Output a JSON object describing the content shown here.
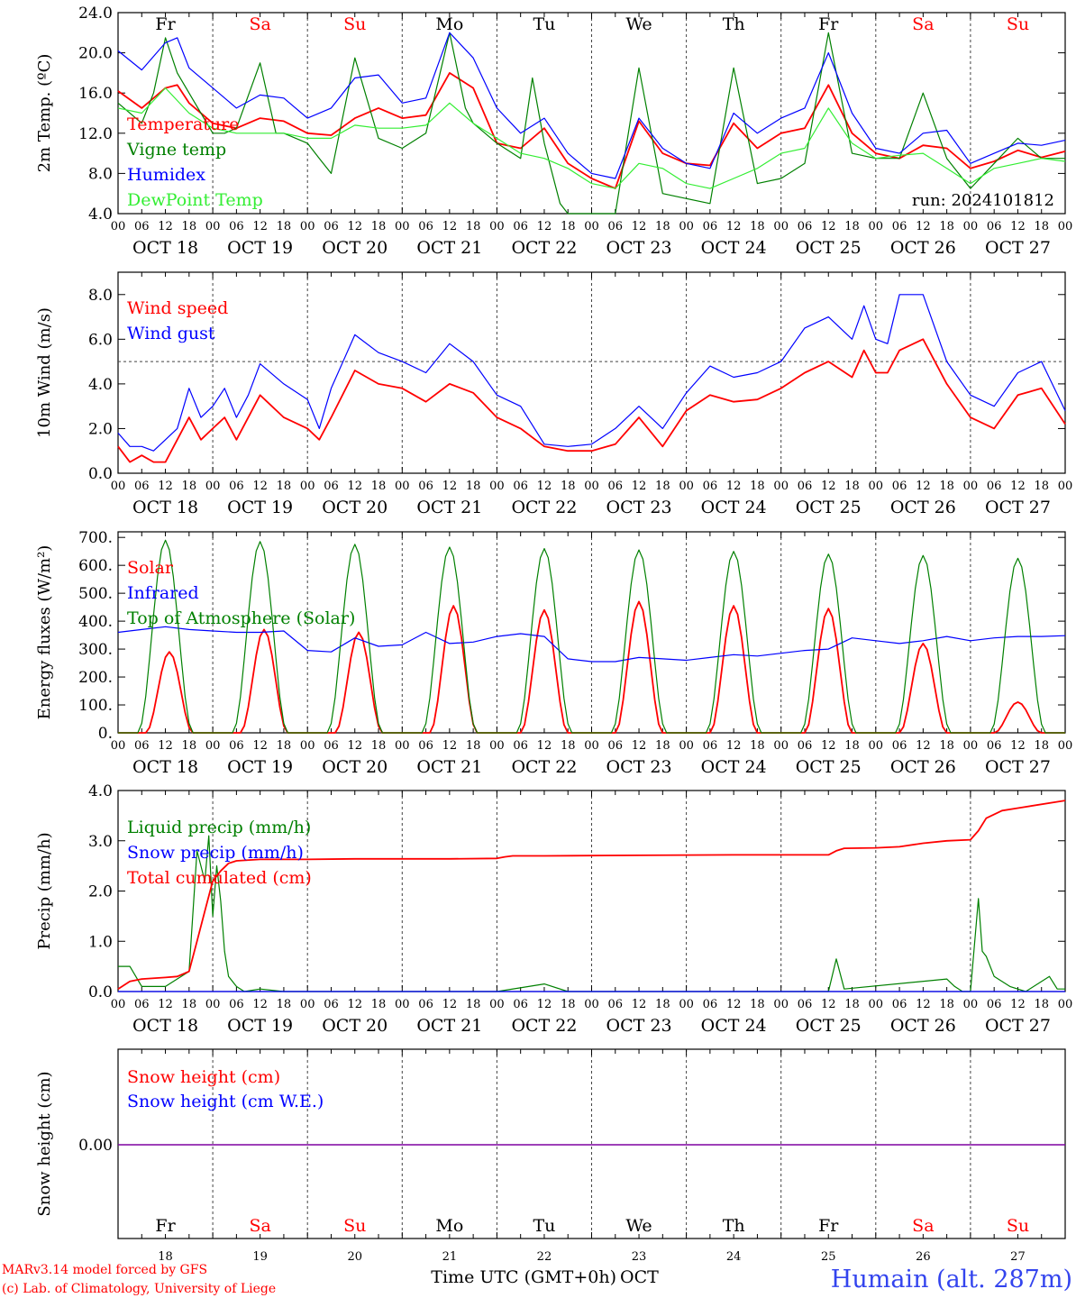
{
  "header": {
    "footer_left_1": "MARv3.14 model forced by GFS",
    "footer_left_2": "(c) Lab. of Climatology, University of Liege",
    "x_axis_title": "Time UTC (GMT+0h)",
    "x_axis_month": "OCT",
    "station": "Humain (alt. 287m)"
  },
  "colors": {
    "red": "#ff0000",
    "green": "#008000",
    "blue": "#0000ff",
    "light_green": "#33ee33",
    "purple": "#7f00a0",
    "weekend": "#ff0000"
  },
  "axis": {
    "hour_ticks": [
      "00",
      "06",
      "12",
      "18"
    ],
    "final_tick": "00",
    "dates": [
      "OCT 18",
      "OCT 19",
      "OCT 20",
      "OCT 21",
      "OCT 22",
      "OCT 23",
      "OCT 24",
      "OCT 25",
      "OCT 26",
      "OCT 27"
    ],
    "weekdays": [
      "Fr",
      "Sa",
      "Su",
      "Mo",
      "Tu",
      "We",
      "Th",
      "Fr",
      "Sa",
      "Su"
    ],
    "weekend_flags": [
      false,
      true,
      true,
      false,
      false,
      false,
      false,
      false,
      true,
      true
    ],
    "day_numbers": [
      "18",
      "19",
      "20",
      "21",
      "22",
      "23",
      "24",
      "25",
      "26",
      "27"
    ]
  },
  "chart_data": [
    {
      "type": "line",
      "ylabel": "2m Temp. (ºC)",
      "ylim": [
        4,
        24
      ],
      "yticks": [
        "4.0",
        "8.0",
        "12.0",
        "16.0",
        "20.0",
        "24.0"
      ],
      "x_unit": "hours since 2024-10-18 00 UTC",
      "annotation": "run: 2024101812",
      "series": [
        {
          "name": "Temperature",
          "color": "red",
          "x": [
            0,
            6,
            12,
            15,
            18,
            24,
            30,
            36,
            42,
            48,
            54,
            60,
            66,
            72,
            78,
            84,
            90,
            96,
            102,
            108,
            114,
            120,
            126,
            132,
            138,
            144,
            150,
            156,
            162,
            168,
            174,
            180,
            186,
            192,
            198,
            204,
            210,
            216,
            222,
            228,
            234,
            240
          ],
          "y": [
            16.2,
            14.5,
            16.5,
            16.8,
            15.0,
            13.0,
            12.5,
            13.5,
            13.2,
            12.0,
            11.8,
            13.5,
            14.5,
            13.5,
            13.8,
            18.0,
            16.5,
            11.0,
            10.5,
            12.5,
            9.0,
            7.5,
            6.5,
            13.2,
            10.0,
            9.0,
            8.8,
            13.0,
            10.5,
            12.0,
            12.5,
            16.8,
            12.0,
            10.0,
            9.5,
            10.8,
            10.5,
            8.5,
            9.2,
            10.3,
            9.6,
            10.2
          ]
        },
        {
          "name": "Vigne temp",
          "color": "green",
          "x": [
            0,
            6,
            9,
            12,
            15,
            18,
            24,
            27,
            30,
            36,
            40,
            42,
            48,
            51,
            54,
            60,
            66,
            72,
            78,
            84,
            88,
            90,
            96,
            102,
            105,
            108,
            112,
            114,
            120,
            126,
            132,
            138,
            144,
            150,
            156,
            162,
            168,
            174,
            180,
            186,
            192,
            198,
            204,
            210,
            216,
            222,
            228,
            234,
            240
          ],
          "y": [
            15.0,
            13.0,
            16.0,
            21.5,
            18.0,
            16.0,
            12.0,
            12.0,
            12.5,
            19.0,
            12.0,
            12.0,
            11.0,
            9.5,
            8.0,
            19.5,
            11.5,
            10.5,
            12.0,
            22.0,
            14.5,
            13.0,
            11.0,
            9.5,
            17.5,
            11.0,
            5.0,
            4.0,
            4.0,
            3.5,
            18.5,
            6.0,
            5.5,
            5.0,
            18.5,
            7.0,
            7.5,
            9.0,
            22.0,
            10.0,
            9.5,
            9.5,
            16.0,
            9.5,
            6.5,
            9.0,
            11.5,
            9.5,
            9.5
          ]
        },
        {
          "name": "Humidex",
          "color": "blue",
          "x": [
            0,
            6,
            12,
            15,
            18,
            24,
            30,
            36,
            42,
            48,
            54,
            60,
            66,
            72,
            78,
            84,
            90,
            96,
            102,
            108,
            114,
            120,
            126,
            132,
            138,
            144,
            150,
            156,
            162,
            168,
            174,
            180,
            186,
            192,
            198,
            204,
            210,
            216,
            222,
            228,
            234,
            240
          ],
          "y": [
            20.2,
            18.3,
            21.0,
            21.5,
            18.5,
            16.5,
            14.5,
            15.8,
            15.5,
            13.5,
            14.5,
            17.5,
            17.8,
            15.0,
            15.5,
            22.0,
            19.5,
            14.5,
            12.0,
            13.5,
            10.0,
            8.0,
            7.5,
            13.5,
            10.5,
            9.0,
            8.5,
            14.0,
            12.0,
            13.5,
            14.5,
            20.0,
            14.0,
            10.5,
            10.0,
            12.0,
            12.3,
            9.0,
            10.0,
            11.0,
            10.8,
            11.3
          ]
        },
        {
          "name": "DewPoint Temp",
          "color": "light_green",
          "x": [
            0,
            6,
            12,
            18,
            24,
            30,
            36,
            42,
            48,
            54,
            60,
            66,
            72,
            78,
            84,
            90,
            96,
            102,
            108,
            114,
            120,
            126,
            132,
            138,
            144,
            150,
            156,
            162,
            168,
            174,
            180,
            186,
            192,
            198,
            204,
            210,
            216,
            222,
            228,
            234,
            240
          ],
          "y": [
            14.5,
            14.0,
            16.5,
            14.0,
            12.5,
            12.0,
            12.0,
            12.0,
            11.5,
            11.5,
            12.8,
            12.5,
            12.5,
            12.8,
            15.0,
            13.0,
            11.5,
            10.0,
            9.5,
            8.5,
            7.0,
            6.5,
            9.0,
            8.5,
            7.0,
            6.5,
            7.5,
            8.5,
            10.0,
            10.5,
            14.5,
            11.0,
            9.5,
            9.8,
            10.0,
            8.5,
            7.0,
            8.5,
            9.0,
            9.5,
            9.2
          ]
        }
      ]
    },
    {
      "type": "line",
      "ylabel": "10m Wind (m/s)",
      "ylim": [
        0,
        9
      ],
      "yticks": [
        "0.0",
        "2.0",
        "4.0",
        "6.0",
        "8.0"
      ],
      "reference_line": 5,
      "series": [
        {
          "name": "Wind speed",
          "color": "red",
          "x": [
            0,
            3,
            6,
            9,
            12,
            15,
            18,
            21,
            24,
            27,
            30,
            33,
            36,
            42,
            48,
            51,
            54,
            60,
            66,
            72,
            78,
            84,
            90,
            96,
            102,
            108,
            114,
            120,
            126,
            132,
            138,
            144,
            150,
            156,
            162,
            168,
            174,
            180,
            186,
            189,
            192,
            195,
            198,
            204,
            210,
            216,
            222,
            228,
            234,
            240
          ],
          "y": [
            1.2,
            0.5,
            0.8,
            0.5,
            0.5,
            1.5,
            2.5,
            1.5,
            2.0,
            2.5,
            1.5,
            2.5,
            3.5,
            2.5,
            2.0,
            1.5,
            2.5,
            4.6,
            4.0,
            3.8,
            3.2,
            4.0,
            3.6,
            2.5,
            2.0,
            1.2,
            1.0,
            1.0,
            1.3,
            2.5,
            1.2,
            2.8,
            3.5,
            3.2,
            3.3,
            3.8,
            4.5,
            5.0,
            4.3,
            5.5,
            4.5,
            4.5,
            5.5,
            6.0,
            4.0,
            2.5,
            2.0,
            3.5,
            3.8,
            2.2
          ]
        },
        {
          "name": "Wind gust",
          "color": "blue",
          "x": [
            0,
            3,
            6,
            9,
            12,
            15,
            18,
            21,
            24,
            27,
            30,
            33,
            36,
            42,
            48,
            51,
            54,
            60,
            66,
            72,
            78,
            84,
            90,
            96,
            102,
            108,
            114,
            120,
            126,
            132,
            138,
            144,
            150,
            156,
            162,
            168,
            174,
            180,
            186,
            189,
            192,
            195,
            198,
            204,
            210,
            216,
            222,
            228,
            234,
            240
          ],
          "y": [
            1.8,
            1.2,
            1.2,
            1.0,
            1.5,
            2.0,
            3.8,
            2.5,
            3.0,
            3.8,
            2.5,
            3.5,
            4.9,
            4.0,
            3.3,
            2.0,
            3.8,
            6.2,
            5.4,
            5.0,
            4.5,
            5.8,
            5.0,
            3.5,
            3.0,
            1.3,
            1.2,
            1.3,
            2.0,
            3.0,
            2.0,
            3.6,
            4.8,
            4.3,
            4.5,
            5.0,
            6.5,
            7.0,
            6.0,
            7.5,
            6.0,
            5.8,
            8.0,
            8.0,
            5.0,
            3.5,
            3.0,
            4.5,
            5.0,
            2.8
          ]
        }
      ]
    },
    {
      "type": "line",
      "ylabel": "Energy fluxes (W/m²)",
      "ylim": [
        0,
        720
      ],
      "yticks": [
        "0.",
        "100.",
        "200.",
        "300.",
        "400.",
        "500.",
        "600.",
        "700."
      ],
      "series": [
        {
          "name": "Solar",
          "color": "red",
          "peaks": [
            {
              "x": 13,
              "y": 290
            },
            {
              "x": 37,
              "y": 370
            },
            {
              "x": 61,
              "y": 360
            },
            {
              "x": 85,
              "y": 455
            },
            {
              "x": 108,
              "y": 440
            },
            {
              "x": 132,
              "y": 470
            },
            {
              "x": 156,
              "y": 455
            },
            {
              "x": 180,
              "y": 445
            },
            {
              "x": 204,
              "y": 320
            },
            {
              "x": 228,
              "y": 110
            }
          ],
          "half_width_hours": 6
        },
        {
          "name": "Infrared",
          "color": "blue",
          "x": [
            0,
            6,
            12,
            18,
            24,
            30,
            36,
            42,
            48,
            54,
            60,
            66,
            72,
            78,
            84,
            90,
            96,
            102,
            108,
            114,
            120,
            126,
            132,
            138,
            144,
            150,
            156,
            162,
            168,
            174,
            180,
            186,
            192,
            198,
            204,
            210,
            216,
            222,
            228,
            234,
            240
          ],
          "y": [
            360,
            370,
            380,
            370,
            365,
            360,
            360,
            365,
            295,
            290,
            340,
            310,
            315,
            360,
            320,
            325,
            345,
            355,
            345,
            265,
            255,
            255,
            270,
            265,
            260,
            270,
            280,
            275,
            285,
            295,
            300,
            340,
            330,
            320,
            330,
            345,
            330,
            340,
            345,
            345,
            348
          ]
        },
        {
          "name": "Top of Atmosphere (Solar)",
          "color": "green",
          "peaks": [
            {
              "x": 12,
              "y": 690
            },
            {
              "x": 36,
              "y": 685
            },
            {
              "x": 60,
              "y": 675
            },
            {
              "x": 84,
              "y": 665
            },
            {
              "x": 108,
              "y": 660
            },
            {
              "x": 132,
              "y": 655
            },
            {
              "x": 156,
              "y": 650
            },
            {
              "x": 180,
              "y": 640
            },
            {
              "x": 204,
              "y": 635
            },
            {
              "x": 228,
              "y": 625
            }
          ],
          "half_width_hours": 7
        }
      ]
    },
    {
      "type": "line",
      "ylabel": "Precip (mm/h)",
      "ylim": [
        0,
        4
      ],
      "yticks": [
        "0.0",
        "1.0",
        "2.0",
        "3.0",
        "4.0"
      ],
      "series": [
        {
          "name": "Liquid precip (mm/h)",
          "color": "green",
          "x": [
            0,
            3,
            6,
            12,
            16,
            18,
            20,
            22,
            23,
            24,
            25,
            26,
            27,
            28,
            30,
            32,
            36,
            42,
            48,
            60,
            72,
            96,
            108,
            114,
            126,
            180,
            182,
            184,
            210,
            212,
            214,
            216,
            218,
            219,
            220,
            222,
            226,
            230,
            236,
            238,
            240
          ],
          "y": [
            0.5,
            0.5,
            0.1,
            0.1,
            0.3,
            0.4,
            2.8,
            2.2,
            3.1,
            1.5,
            2.5,
            1.8,
            0.8,
            0.3,
            0.1,
            0.0,
            0.05,
            0.0,
            0.0,
            0.0,
            0.0,
            0.0,
            0.15,
            0.0,
            0.0,
            0.0,
            0.65,
            0.05,
            0.25,
            0.1,
            0.0,
            0.0,
            1.85,
            0.8,
            0.7,
            0.3,
            0.1,
            0.0,
            0.3,
            0.05,
            0.05
          ]
        },
        {
          "name": "Snow precip (mm/h)",
          "color": "blue",
          "x": [
            0,
            240
          ],
          "y": [
            0,
            0
          ]
        },
        {
          "name": "Total cumulated (cm)",
          "color": "red",
          "x": [
            0,
            3,
            6,
            12,
            15,
            18,
            20,
            22,
            24,
            26,
            28,
            30,
            36,
            48,
            60,
            84,
            96,
            98,
            100,
            108,
            132,
            156,
            180,
            182,
            184,
            192,
            198,
            204,
            210,
            216,
            218,
            220,
            224,
            228,
            240
          ],
          "y": [
            0.05,
            0.2,
            0.25,
            0.28,
            0.3,
            0.4,
            1.0,
            1.6,
            2.2,
            2.4,
            2.55,
            2.6,
            2.63,
            2.63,
            2.64,
            2.64,
            2.65,
            2.68,
            2.7,
            2.7,
            2.71,
            2.72,
            2.72,
            2.8,
            2.85,
            2.86,
            2.88,
            2.95,
            3.0,
            3.02,
            3.2,
            3.45,
            3.6,
            3.65,
            3.8
          ]
        }
      ]
    },
    {
      "type": "line",
      "ylabel": "Snow height (cm)",
      "yticks": [
        "0.00"
      ],
      "series": [
        {
          "name": "Snow height (cm)",
          "color": "red",
          "x": [
            0,
            240
          ],
          "y": [
            0,
            0
          ]
        },
        {
          "name": "Snow height (cm W.E.)",
          "color": "blue",
          "x": [
            0,
            240
          ],
          "y": [
            0,
            0
          ]
        }
      ]
    }
  ]
}
